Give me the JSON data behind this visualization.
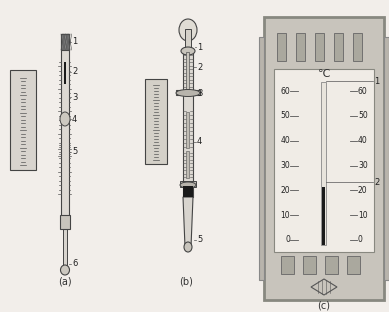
{
  "bg_color": "#f2eeea",
  "caption_a": "(a)",
  "caption_b": "(b)",
  "caption_c": "(c)",
  "c_label": "℃",
  "line_color": "#444444",
  "dark_fill": "#1a1a1a",
  "light_fill": "#e8e4de",
  "mid_fill": "#c8c4bc",
  "scale_vals": [
    0,
    10,
    20,
    30,
    40,
    50,
    60
  ]
}
